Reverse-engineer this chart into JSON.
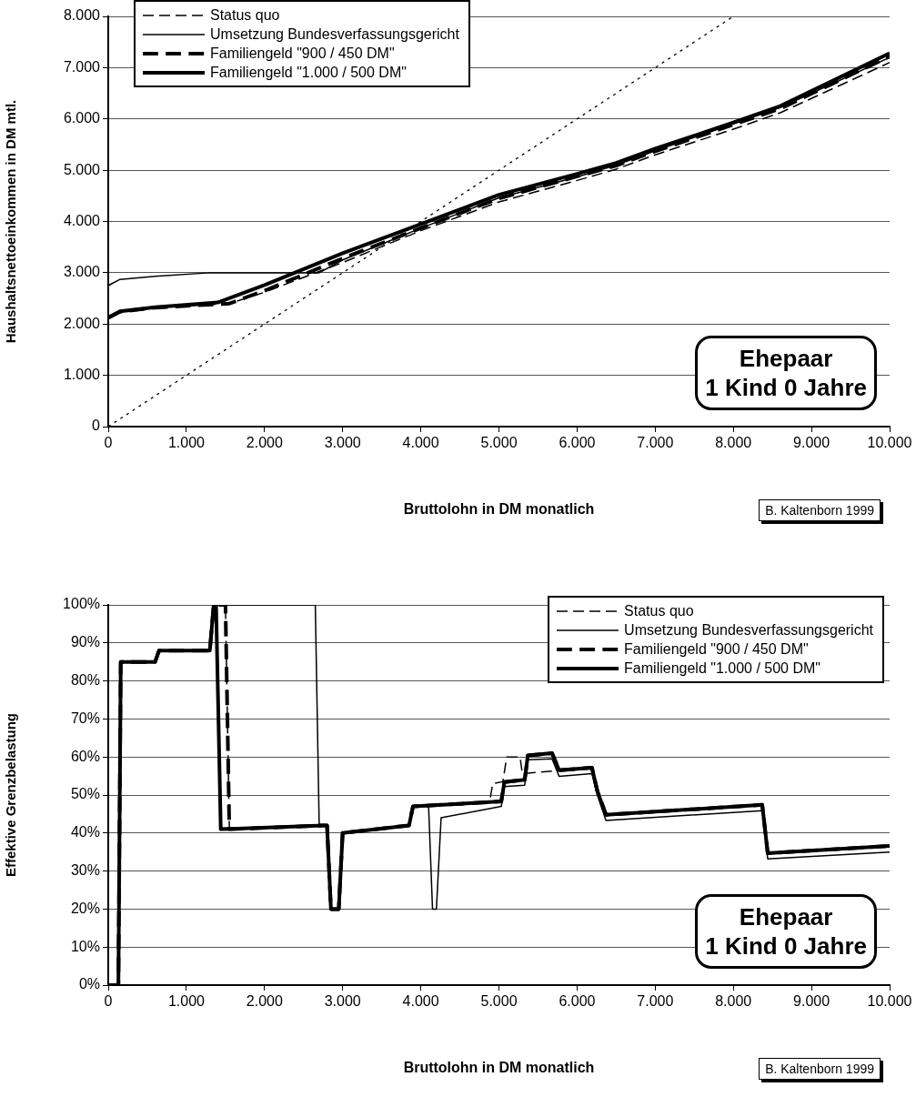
{
  "chart_data": [
    {
      "type": "line",
      "xlabel": "Bruttolohn in DM monatlich",
      "ylabel": "Haushaltsnettoeinkommen in DM mtl.",
      "xlim": [
        0,
        10000
      ],
      "ylim": [
        0,
        8000
      ],
      "xticks": [
        0,
        {
          "value": 1000,
          "label": "1.000"
        },
        {
          "value": 2000,
          "label": "2.000"
        },
        {
          "value": 3000,
          "label": "3.000"
        },
        {
          "value": 4000,
          "label": "4.000"
        },
        {
          "value": 5000,
          "label": "5.000"
        },
        {
          "value": 6000,
          "label": "6.000"
        },
        {
          "value": 7000,
          "label": "7.000"
        },
        {
          "value": 8000,
          "label": "8.000"
        },
        {
          "value": 9000,
          "label": "9.000"
        },
        {
          "value": 10000,
          "label": "10.000"
        }
      ],
      "yticks": [
        0,
        {
          "value": 1000,
          "label": "1.000"
        },
        {
          "value": 2000,
          "label": "2.000"
        },
        {
          "value": 3000,
          "label": "3.000"
        },
        {
          "value": 4000,
          "label": "4.000"
        },
        {
          "value": 5000,
          "label": "5.000"
        },
        {
          "value": 6000,
          "label": "6.000"
        },
        {
          "value": 7000,
          "label": "7.000"
        },
        {
          "value": 8000,
          "label": "8.000"
        }
      ],
      "grid": "y",
      "legend": "top left",
      "marker": "none",
      "annotations": [
        "Ehepaar\n1 Kind 0 Jahre",
        "B. Kaltenborn 1999"
      ],
      "series": [
        {
          "name": "Status quo",
          "color": "#000000",
          "line_style": "dashed",
          "x": [
            0,
            150,
            600,
            1550,
            2000,
            3000,
            4000,
            5000,
            6000,
            6500,
            7000,
            8000,
            8600,
            10000
          ],
          "values": [
            2120,
            2240,
            2320,
            2400,
            2620,
            3200,
            3820,
            4380,
            4800,
            5020,
            5300,
            5800,
            6120,
            7100
          ]
        },
        {
          "name": "Umsetzung Bundesverfassungsgericht",
          "color": "#000000",
          "line_style": "solid",
          "x": [
            0,
            150,
            600,
            1300,
            2700,
            3000,
            4000,
            5000,
            6000,
            6500,
            7000,
            8000,
            8600,
            10000
          ],
          "values": [
            2750,
            2870,
            2930,
            3000,
            3000,
            3250,
            3870,
            4460,
            4870,
            5100,
            5380,
            5900,
            6220,
            7200
          ]
        },
        {
          "name": "Familiengeld \"900 / 450 DM\"",
          "color": "#000000",
          "line_style": "dashed",
          "x": [
            0,
            150,
            600,
            1550,
            2000,
            3000,
            4000,
            5000,
            6000,
            6500,
            7000,
            8000,
            8600,
            10000
          ],
          "values": [
            2120,
            2240,
            2320,
            2400,
            2650,
            3280,
            3870,
            4450,
            4880,
            5090,
            5370,
            5890,
            6200,
            7220
          ]
        },
        {
          "name": "Familiengeld \"1.000 / 500 DM\"",
          "color": "#000000",
          "line_style": "solid",
          "x": [
            0,
            150,
            600,
            1400,
            2000,
            3000,
            4000,
            5000,
            6000,
            6500,
            7000,
            8000,
            8600,
            10000
          ],
          "values": [
            2130,
            2250,
            2330,
            2420,
            2760,
            3380,
            3950,
            4520,
            4930,
            5140,
            5420,
            5930,
            6250,
            7280
          ]
        },
        {
          "type": "line",
          "color": "#000000",
          "line_style": "dotted",
          "x": [
            0,
            8000
          ],
          "values": [
            0,
            8000
          ]
        }
      ]
    },
    {
      "type": "line",
      "xlabel": "Bruttolohn in DM monatlich",
      "ylabel": "Effektive Grenzbelastung",
      "xlim": [
        0,
        10000
      ],
      "ylim": [
        0,
        100
      ],
      "xticks": [
        0,
        {
          "value": 1000,
          "label": "1.000"
        },
        {
          "value": 2000,
          "label": "2.000"
        },
        {
          "value": 3000,
          "label": "3.000"
        },
        {
          "value": 4000,
          "label": "4.000"
        },
        {
          "value": 5000,
          "label": "5.000"
        },
        {
          "value": 6000,
          "label": "6.000"
        },
        {
          "value": 7000,
          "label": "7.000"
        },
        {
          "value": 8000,
          "label": "8.000"
        },
        {
          "value": 9000,
          "label": "9.000"
        },
        {
          "value": 10000,
          "label": "10.000"
        }
      ],
      "yticks": [
        {
          "value": 0,
          "label": "0%"
        },
        {
          "value": 10,
          "label": "10%"
        },
        {
          "value": 20,
          "label": "20%"
        },
        {
          "value": 30,
          "label": "30%"
        },
        {
          "value": 40,
          "label": "40%"
        },
        {
          "value": 50,
          "label": "50%"
        },
        {
          "value": 60,
          "label": "60%"
        },
        {
          "value": 70,
          "label": "70%"
        },
        {
          "value": 80,
          "label": "80%"
        },
        {
          "value": 90,
          "label": "90%"
        },
        {
          "value": 100,
          "label": "100%"
        }
      ],
      "grid": "y",
      "legend": "top right",
      "marker": "none",
      "annotations": [
        "Ehepaar\n1 Kind 0 Jahre",
        "B. Kaltenborn 1999"
      ],
      "series": [
        {
          "name": "Status quo",
          "color": "#000000",
          "line_style": "dashed",
          "x": [
            0,
            130,
            160,
            600,
            650,
            1300,
            1350,
            1500,
            1550,
            2750,
            2800,
            2850,
            2950,
            3000,
            3850,
            3900,
            4880,
            4920,
            5050,
            5100,
            5270,
            5300,
            5680,
            5770,
            6190,
            6260,
            6370,
            8370,
            8440,
            10000
          ],
          "values": [
            0,
            0,
            85,
            85,
            88,
            88,
            100,
            100,
            41,
            42,
            42,
            20,
            20,
            40,
            42,
            47,
            48,
            53,
            53.5,
            60,
            60,
            55.6,
            56.3,
            56.5,
            57.2,
            51,
            44.8,
            47.4,
            34.7,
            36.6
          ]
        },
        {
          "name": "Umsetzung Bundesverfassungsgericht",
          "color": "#000000",
          "line_style": "solid",
          "x": [
            0,
            130,
            160,
            600,
            650,
            1300,
            1350,
            2650,
            2700,
            2750,
            2800,
            2850,
            2950,
            3000,
            3850,
            3900,
            4100,
            4150,
            4200,
            4260,
            5030,
            5070,
            5330,
            5370,
            5680,
            5770,
            6190,
            6260,
            6370,
            8370,
            8440,
            10000
          ],
          "values": [
            0,
            0,
            85,
            85,
            88,
            88,
            100,
            100,
            41.5,
            42,
            42,
            20,
            20,
            40,
            42,
            47,
            47,
            20,
            20,
            44,
            47,
            52.2,
            52.6,
            59.3,
            59.5,
            54.9,
            55.6,
            50,
            43.3,
            45.9,
            33.2,
            35
          ]
        },
        {
          "name": "Familiengeld \"900 / 450 DM\"",
          "color": "#000000",
          "line_style": "dashed",
          "x": [
            0,
            130,
            160,
            600,
            650,
            1300,
            1350,
            1500,
            1550,
            2750,
            2800,
            2850,
            2950,
            3000,
            3850,
            3900,
            5030,
            5070,
            5330,
            5370,
            5680,
            5770,
            6190,
            6260,
            6370,
            8370,
            8440,
            10000
          ],
          "values": [
            0,
            0,
            85,
            85,
            88,
            88,
            100,
            100,
            41,
            42,
            42,
            20,
            20,
            40,
            42,
            47,
            48.3,
            53.4,
            54,
            60.4,
            61,
            56.5,
            57.2,
            51,
            44.8,
            47.4,
            34.7,
            36.6
          ]
        },
        {
          "name": "Familiengeld \"1.000 / 500 DM\"",
          "color": "#000000",
          "line_style": "solid",
          "x": [
            0,
            130,
            160,
            600,
            650,
            1300,
            1350,
            1380,
            1440,
            2750,
            2800,
            2850,
            2950,
            3000,
            3850,
            3900,
            5030,
            5070,
            5330,
            5370,
            5680,
            5770,
            6190,
            6260,
            6370,
            8370,
            8440,
            10000
          ],
          "values": [
            0,
            0,
            85,
            85,
            88,
            88,
            100,
            100,
            41,
            42,
            42,
            20,
            20,
            40,
            42,
            47,
            48.3,
            53.4,
            54,
            60.4,
            61,
            56.5,
            57.2,
            51,
            44.8,
            47.4,
            34.7,
            36.6
          ]
        }
      ]
    }
  ]
}
